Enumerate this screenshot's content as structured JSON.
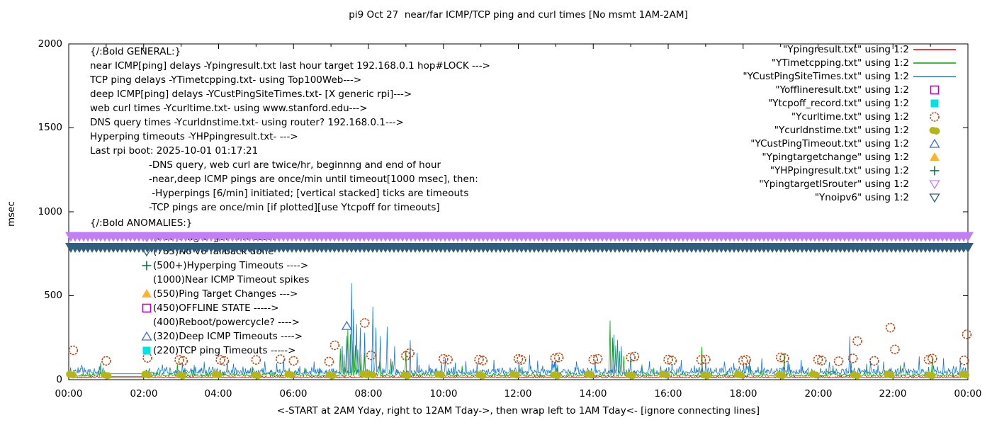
{
  "title": "pi9 Oct 27  near/far ICMP/TCP ping and curl times [No msmt 1AM-2AM]",
  "ylabel": "msec",
  "xlabel": "<-START at 2AM Yday, right to 12AM Tday->, then wrap left to 1AM Tday<- [ignore connecting lines]",
  "axes": {
    "y_tick_labels": [
      "2000",
      "1500",
      "1000",
      "500",
      "0"
    ],
    "x_tick_labels": [
      "00:00",
      "02:00",
      "04:00",
      "06:00",
      "08:00",
      "10:00",
      "12:00",
      "14:00",
      "16:00",
      "18:00",
      "20:00",
      "22:00",
      "00:00"
    ]
  },
  "legend": [
    {
      "label": "\"Ypingresult.txt\" using 1:2",
      "style": "line",
      "color": "#e50000"
    },
    {
      "label": "\"YTimetcpping.txt\" using 1:2",
      "style": "line",
      "color": "#00a400"
    },
    {
      "label": "\"YCustPingSiteTimes.txt\" using 1:2",
      "style": "line",
      "color": "#1a78d4"
    },
    {
      "label": "\"Yofflineresult.txt\" using 1:2",
      "style": "open-square",
      "color": "#bd00c6"
    },
    {
      "label": "\"Ytcpoff_record.txt\" using 1:2",
      "style": "filled-square",
      "color": "#00e3e3"
    },
    {
      "label": "\"Ycurltime.txt\" using 1:2",
      "style": "open-circle",
      "color": "#b4490f"
    },
    {
      "label": "\"Ycurldnstime.txt\" using 1:2",
      "style": "filled-circle",
      "color": "#b5b616"
    },
    {
      "label": "\"YCustPingTimeout.txt\" using 1:2",
      "style": "open-triangle-up",
      "color": "#3f6fd0"
    },
    {
      "label": "\"Ypingtargetchange\" using 1:2",
      "style": "filled-triangle-up",
      "color": "#fdb42c"
    },
    {
      "label": "\"YHPpingresult.txt\" using 1:2",
      "style": "plus",
      "color": "#0c7044"
    },
    {
      "label": "\"YpingtargetISrouter\" using 1:2",
      "style": "open-triangle-down",
      "color": "#c27ef7"
    },
    {
      "label": "\"Ynoipv6\" using 1:2",
      "style": "open-triangle-down",
      "color": "#2e5f7e"
    }
  ],
  "annotations": {
    "general": [
      "{/:Bold GENERAL:}",
      "near ICMP[ping] delays -Ypingresult.txt last hour target 192.168.0.1 hop#LOCK --->",
      "TCP ping delays -YTimetcpping.txt- using Top100Web--->",
      "deep ICMP[ping] delays -YCustPingSiteTimes.txt- [X generic rpi]--->",
      "web curl times -Ycurltime.txt- using www.stanford.edu--->",
      "DNS query times -Ycurldnstime.txt- using router? 192.168.0.1--->",
      "Hyperping timeouts -YHPpingresult.txt- --->",
      "Last rpi boot: 2025-10-01 01:17:21"
    ],
    "notes": [
      "-DNS query, web curl are twice/hr, beginnng and end of hour",
      "-near,deep ICMP pings are once/min until timeout[1000 msec], then:",
      " -Hyperpings [6/min] initiated; [vertical stacked] ticks are timeouts",
      "-TCP pings are once/min [if plotted][use Ytcpoff for timeouts]"
    ],
    "anomalies_header": "{/:Bold ANOMALIES:}",
    "anomalies": [
      {
        "marker": "open-triangle-down",
        "color": "#c27ef7",
        "text": "(850)PingTarget is router!"
      },
      {
        "marker": "open-triangle-down",
        "color": "#2e5f7e",
        "text": "(785)No v6 fallback done"
      },
      {
        "marker": "plus",
        "color": "#0c7044",
        "text": "(500+)Hyperping Timeouts ---->"
      },
      {
        "marker": "none",
        "color": "#000000",
        "text": "(1000)Near ICMP Timeout spikes"
      },
      {
        "marker": "filled-triangle-up",
        "color": "#fdb42c",
        "text": "(550)Ping Target Changes --->"
      },
      {
        "marker": "open-square",
        "color": "#bd00c6",
        "text": "(450)OFFLINE STATE ----->"
      },
      {
        "marker": "none",
        "color": "#000000",
        "text": "(400)Reboot/powercycle? ---->"
      },
      {
        "marker": "open-triangle-up",
        "color": "#3f6fd0",
        "text": "(320)Deep ICMP Timeouts ---->"
      },
      {
        "marker": "filled-square",
        "color": "#00e3e3",
        "text": "(220)TCP ping Timeouts ----->"
      }
    ]
  },
  "chart_data": {
    "type": "line",
    "x_axis": {
      "unit": "hours",
      "range": [
        0,
        24
      ],
      "tick_labels": [
        "00:00",
        "02:00",
        "04:00",
        "06:00",
        "08:00",
        "10:00",
        "12:00",
        "14:00",
        "16:00",
        "18:00",
        "20:00",
        "22:00",
        "00:00"
      ]
    },
    "y_axis": {
      "label": "msec",
      "range": [
        0,
        2000
      ],
      "ticks": [
        0,
        500,
        1000,
        1500,
        2000
      ]
    },
    "grid": false,
    "legend_position": "top-right",
    "no_measurement_window_hours": [
      1,
      2
    ],
    "series": [
      {
        "name": "Ypingresult.txt",
        "role": "near ICMP ping delay",
        "style": "line",
        "color": "#e50000",
        "baseline_msec": 12,
        "noise_msec": 10,
        "spikes": []
      },
      {
        "name": "YTimetcpping.txt",
        "role": "TCP ping delay (Top100Web)",
        "style": "line",
        "color": "#00a400",
        "baseline_msec": 20,
        "noise_msec": 26,
        "spikes": [
          [
            0.85,
            100
          ],
          [
            2.9,
            95
          ],
          [
            3.1,
            70
          ],
          [
            4.9,
            78
          ],
          [
            6.3,
            70
          ],
          [
            7.25,
            185
          ],
          [
            7.35,
            150
          ],
          [
            7.45,
            300
          ],
          [
            7.52,
            270
          ],
          [
            7.58,
            230
          ],
          [
            7.65,
            205
          ],
          [
            7.72,
            180
          ],
          [
            7.8,
            150
          ],
          [
            7.9,
            160
          ],
          [
            8.3,
            110
          ],
          [
            8.6,
            125
          ],
          [
            9.0,
            172
          ],
          [
            10.5,
            82
          ],
          [
            12.1,
            75
          ],
          [
            13.05,
            88
          ],
          [
            14.45,
            352
          ],
          [
            14.52,
            250
          ],
          [
            14.6,
            205
          ],
          [
            14.7,
            170
          ],
          [
            14.82,
            140
          ],
          [
            15.3,
            90
          ],
          [
            16.9,
            195
          ],
          [
            18.2,
            80
          ],
          [
            19.1,
            155
          ],
          [
            20.4,
            85
          ],
          [
            21.3,
            95
          ],
          [
            22.2,
            85
          ],
          [
            23.05,
            135
          ]
        ]
      },
      {
        "name": "YCustPingSiteTimes.txt",
        "role": "deep ICMP ping delay",
        "style": "line",
        "color": "#1a78d4",
        "baseline_msec": 35,
        "noise_msec": 48,
        "spikes": [
          [
            0.35,
            88
          ],
          [
            2.5,
            90
          ],
          [
            3.35,
            88
          ],
          [
            4.4,
            95
          ],
          [
            5.55,
            98
          ],
          [
            6.55,
            108
          ],
          [
            7.3,
            200
          ],
          [
            7.42,
            260
          ],
          [
            7.55,
            575
          ],
          [
            7.6,
            420
          ],
          [
            7.68,
            330
          ],
          [
            7.78,
            310
          ],
          [
            7.9,
            280
          ],
          [
            8.12,
            435
          ],
          [
            8.2,
            310
          ],
          [
            8.32,
            260
          ],
          [
            8.5,
            315
          ],
          [
            8.7,
            200
          ],
          [
            9.12,
            235
          ],
          [
            9.3,
            160
          ],
          [
            10.05,
            128
          ],
          [
            10.6,
            110
          ],
          [
            11.35,
            118
          ],
          [
            12.3,
            148
          ],
          [
            12.9,
            110
          ],
          [
            13.55,
            108
          ],
          [
            14.05,
            120
          ],
          [
            14.55,
            268
          ],
          [
            14.65,
            238
          ],
          [
            14.75,
            200
          ],
          [
            15.0,
            138
          ],
          [
            15.5,
            110
          ],
          [
            16.35,
            118
          ],
          [
            17.0,
            105
          ],
          [
            17.5,
            108
          ],
          [
            18.5,
            128
          ],
          [
            19.2,
            110
          ],
          [
            19.55,
            118
          ],
          [
            20.3,
            105
          ],
          [
            20.85,
            258
          ],
          [
            21.4,
            110
          ],
          [
            21.75,
            108
          ],
          [
            22.3,
            105
          ],
          [
            22.7,
            138
          ],
          [
            23.35,
            128
          ],
          [
            23.8,
            110
          ]
        ]
      },
      {
        "name": "Yofflineresult.txt",
        "role": "offline state marker",
        "style": "open-square",
        "color": "#bd00c6",
        "points": []
      },
      {
        "name": "Ytcpoff_record.txt",
        "role": "TCP ping timeout marker",
        "style": "filled-square",
        "color": "#00e3e3",
        "points": []
      },
      {
        "name": "Ycurltime.txt",
        "role": "web curl time (www.stanford.edu)",
        "style": "open-circle",
        "color": "#b4490f",
        "points": [
          [
            0.12,
            175
          ],
          [
            1.0,
            112
          ],
          [
            2.1,
            130
          ],
          [
            2.95,
            118
          ],
          [
            3.05,
            112
          ],
          [
            4.05,
            118
          ],
          [
            4.15,
            112
          ],
          [
            5.0,
            118
          ],
          [
            5.65,
            122
          ],
          [
            6.0,
            112
          ],
          [
            6.95,
            108
          ],
          [
            7.1,
            205
          ],
          [
            7.9,
            338
          ],
          [
            8.07,
            145
          ],
          [
            9.0,
            142
          ],
          [
            9.1,
            158
          ],
          [
            10.0,
            124
          ],
          [
            10.12,
            120
          ],
          [
            10.95,
            120
          ],
          [
            11.05,
            114
          ],
          [
            12.0,
            124
          ],
          [
            12.08,
            118
          ],
          [
            12.98,
            128
          ],
          [
            13.08,
            133
          ],
          [
            14.0,
            120
          ],
          [
            14.12,
            124
          ],
          [
            15.0,
            133
          ],
          [
            15.1,
            138
          ],
          [
            16.0,
            120
          ],
          [
            16.1,
            114
          ],
          [
            16.88,
            118
          ],
          [
            17.0,
            120
          ],
          [
            18.0,
            114
          ],
          [
            18.08,
            118
          ],
          [
            19.0,
            133
          ],
          [
            19.1,
            128
          ],
          [
            20.0,
            120
          ],
          [
            20.1,
            114
          ],
          [
            20.55,
            110
          ],
          [
            20.93,
            127
          ],
          [
            21.05,
            230
          ],
          [
            21.5,
            112
          ],
          [
            21.93,
            310
          ],
          [
            22.05,
            180
          ],
          [
            22.95,
            120
          ],
          [
            23.05,
            126
          ],
          [
            23.9,
            115
          ],
          [
            23.97,
            270
          ]
        ]
      },
      {
        "name": "Ycurldnstime.txt",
        "role": "DNS query time (router 192.168.0.1)",
        "style": "filled-circle",
        "color": "#b5b616",
        "points": [
          [
            0.07,
            32
          ],
          [
            1.0,
            28
          ],
          [
            2.08,
            32
          ],
          [
            3.0,
            28
          ],
          [
            3.95,
            32
          ],
          [
            5.0,
            28
          ],
          [
            5.9,
            32
          ],
          [
            7.0,
            28
          ],
          [
            7.9,
            34
          ],
          [
            8.07,
            32
          ],
          [
            9.0,
            28
          ],
          [
            9.9,
            32
          ],
          [
            11.0,
            28
          ],
          [
            11.9,
            32
          ],
          [
            13.0,
            28
          ],
          [
            13.9,
            32
          ],
          [
            15.0,
            28
          ],
          [
            15.9,
            32
          ],
          [
            17.0,
            28
          ],
          [
            17.9,
            32
          ],
          [
            19.0,
            28
          ],
          [
            19.9,
            32
          ],
          [
            21.0,
            28
          ],
          [
            21.9,
            32
          ],
          [
            23.0,
            28
          ],
          [
            23.9,
            32
          ]
        ]
      },
      {
        "name": "YCustPingTimeout.txt",
        "role": "deep ICMP timeout marker",
        "style": "open-triangle-up",
        "color": "#3f6fd0",
        "points": [
          [
            7.42,
            320
          ]
        ]
      },
      {
        "name": "Ypingtargetchange",
        "role": "ping target change marker",
        "style": "filled-triangle-up",
        "color": "#fdb42c",
        "points": []
      },
      {
        "name": "YHPpingresult.txt",
        "role": "hyperping timeout tick",
        "style": "plus",
        "color": "#0c7044",
        "points": []
      },
      {
        "name": "YpingtargetISrouter",
        "role": "ping target is router flag",
        "style": "band-triangle-down",
        "color": "#c27ef7",
        "band_msec": 850,
        "x_range_hours": [
          0,
          24
        ]
      },
      {
        "name": "Ynoipv6",
        "role": "no ipv6 flag",
        "style": "band-triangle-down",
        "color": "#2e5f7e",
        "band_msec": 785,
        "x_range_hours": [
          0,
          24
        ]
      }
    ]
  }
}
